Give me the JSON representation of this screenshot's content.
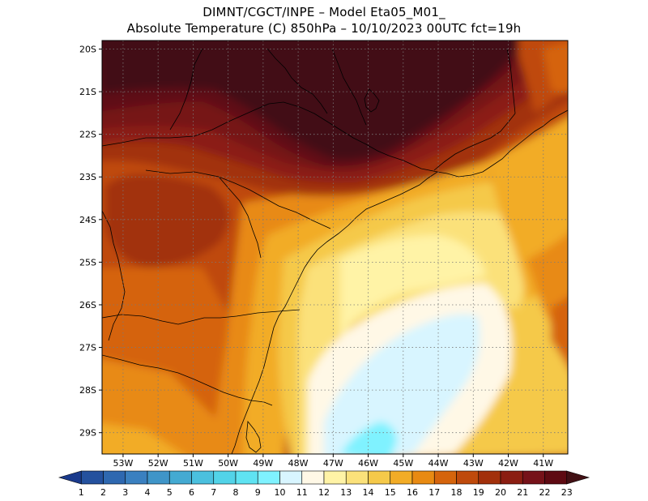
{
  "title": {
    "line1": "DIMNT/CGCT/INPE –  Model Eta05_M01_",
    "line2": "Absolute Temperature (C) 850hPa –  10/10/2023 00UTC fct=19h"
  },
  "map": {
    "lat_labels": [
      "20S",
      "21S",
      "22S",
      "23S",
      "24S",
      "25S",
      "26S",
      "27S",
      "28S",
      "29S"
    ],
    "lon_labels": [
      "53W",
      "52W",
      "51W",
      "50W",
      "49W",
      "48W",
      "47W",
      "46W",
      "45W",
      "44W",
      "43W",
      "42W",
      "41W"
    ],
    "lat_range": [
      -29.5,
      -19.8
    ],
    "lon_range": [
      -53.6,
      -40.3
    ]
  },
  "colorbar": {
    "labels": [
      "1",
      "2",
      "3",
      "4",
      "5",
      "6",
      "7",
      "8",
      "9",
      "10",
      "11",
      "12",
      "13",
      "14",
      "15",
      "16",
      "17",
      "18",
      "19",
      "20",
      "21",
      "22",
      "23"
    ],
    "colors": [
      "#1a3a8c",
      "#24519e",
      "#2e68b0",
      "#3a80c0",
      "#3f95c8",
      "#44aad2",
      "#4bc0de",
      "#52d3e8",
      "#5fe3f2",
      "#7ff2ff",
      "#d8f5ff",
      "#fff8e6",
      "#fff3a6",
      "#fbe17a",
      "#f5c94a",
      "#f2ac26",
      "#e88a12",
      "#d5640c",
      "#bf4a0c",
      "#a2300b",
      "#8b1e12",
      "#761219",
      "#5e0a12",
      "#421014"
    ]
  }
}
